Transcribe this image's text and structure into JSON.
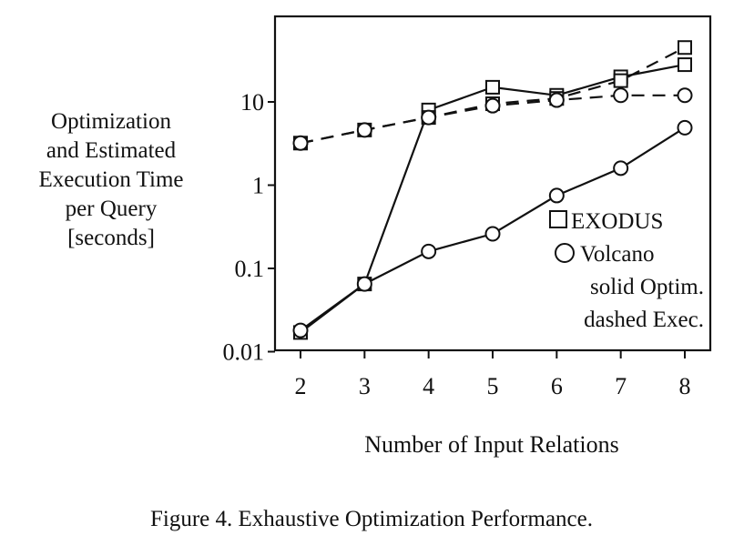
{
  "chart_data": {
    "type": "line",
    "ylabel": [
      "Optimization",
      "and Estimated",
      "Execution Time",
      "per Query",
      "[seconds]"
    ],
    "xlabel": "Number of Input Relations",
    "caption": "Figure 4. Exhaustive Optimization Performance.",
    "x": [
      2,
      3,
      4,
      5,
      6,
      7,
      8
    ],
    "xlim": [
      2,
      8
    ],
    "ylim": [
      0.01,
      100
    ],
    "yscale": "log",
    "yticks": [
      {
        "value": 0.01,
        "label": "0.01"
      },
      {
        "value": 0.1,
        "label": "0.1"
      },
      {
        "value": 1,
        "label": "1"
      },
      {
        "value": 10,
        "label": "10"
      }
    ],
    "xticks": [
      "2",
      "3",
      "4",
      "5",
      "6",
      "7",
      "8"
    ],
    "legend": {
      "placement": "bottom-right",
      "entries": [
        {
          "marker": "square",
          "label": "EXODUS"
        },
        {
          "marker": "circle",
          "label": "Volcano"
        }
      ],
      "notes": [
        "solid Optim.",
        "dashed Exec."
      ]
    },
    "series": [
      {
        "system": "EXODUS",
        "measure": "optimization",
        "style": "solid",
        "marker": "square",
        "values": [
          0.017,
          0.065,
          8,
          15,
          12,
          20,
          28
        ]
      },
      {
        "system": "EXODUS",
        "measure": "execution",
        "style": "dashed",
        "marker": "square",
        "values": [
          3.2,
          4.6,
          6.5,
          9.5,
          11,
          18,
          45
        ]
      },
      {
        "system": "Volcano",
        "measure": "optimization",
        "style": "solid",
        "marker": "circle",
        "values": [
          0.018,
          0.065,
          0.16,
          0.26,
          0.75,
          1.6,
          4.9
        ]
      },
      {
        "system": "Volcano",
        "measure": "execution",
        "style": "dashed",
        "marker": "circle",
        "values": [
          3.2,
          4.6,
          6.5,
          9.0,
          10.5,
          12,
          12
        ]
      }
    ],
    "grid": false
  }
}
